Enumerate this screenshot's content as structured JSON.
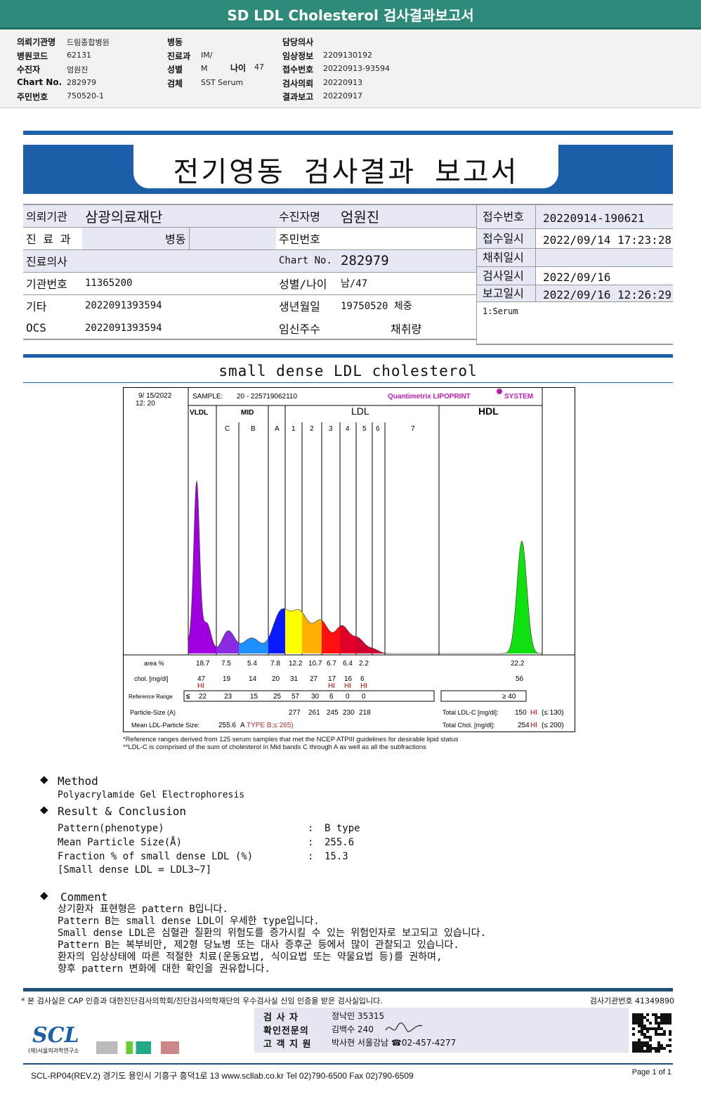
{
  "top": {
    "title": "SD LDL Cholesterol 검사결과보고서",
    "col1": [
      [
        "의뢰기관명",
        "드림종합병원"
      ],
      [
        "병원코드",
        "62131"
      ],
      [
        "수진자",
        "엄원진"
      ],
      [
        "Chart No.",
        "282979"
      ],
      [
        "주민번호",
        "750520-1"
      ]
    ],
    "col2": [
      [
        "병동",
        ""
      ],
      [
        "진료과",
        "IM/"
      ],
      [
        "성별",
        "M"
      ],
      [
        "검체",
        "SST Serum"
      ]
    ],
    "age_label": "나이",
    "age": "47",
    "col3": [
      [
        "담당의사",
        ""
      ],
      [
        "임상정보",
        "2209130192"
      ],
      [
        "접수번호",
        "20220913-93594"
      ],
      [
        "검사의뢰",
        "20220913"
      ],
      [
        "결과보고",
        "20220917"
      ]
    ]
  },
  "report_title": "전기영동 검사결과 보고서",
  "patient": {
    "org_label": "의뢰기관",
    "org": "삼광의료재단",
    "name_label": "수진자명",
    "name": "엄원진",
    "dept_label": "진 료 과",
    "ward": "병동",
    "rrn_label": "주민번호",
    "rrn": "",
    "doctor_label": "진료의사",
    "chart_label": "Chart No.",
    "chart": "282979",
    "inst_label": "기관번호",
    "inst": "11365200",
    "sexage_label": "성별/나이",
    "sexage": "남/47",
    "etc_label": "기타",
    "etc": "2022091393594",
    "birth_label": "생년월일",
    "birth": "19750520",
    "weight_label": "체중",
    "ocs_label": "OCS",
    "ocs": "2022091393594",
    "preg_label": "임신주수",
    "volume_label": "채취량",
    "right": [
      [
        "접수번호",
        "20220914-190621"
      ],
      [
        "접수일시",
        "2022/09/14 17:23:28"
      ],
      [
        "채취일시",
        ""
      ],
      [
        "검사일시",
        "2022/09/16"
      ],
      [
        "보고일시",
        "2022/09/16 12:26:29"
      ]
    ],
    "specimen": "1:Serum"
  },
  "section_title": "small dense LDL cholesterol",
  "chart": {
    "date": "9/ 15/2022",
    "time": "12: 20",
    "sample_label": "SAMPLE:",
    "sample": "20 - 225719062110",
    "brand": "Quantimetrix LIPOPRINT",
    "brand2": "SYSTEM",
    "groups": [
      "VLDL",
      "MID",
      "LDL",
      "HDL"
    ],
    "bands": [
      "C",
      "B",
      "A",
      "1",
      "2",
      "3",
      "4",
      "5",
      "6",
      "7"
    ],
    "colors": {
      "vldl": "#a000e0",
      "c": "#8a2be2",
      "b": "#1e8fff",
      "a": "#0a1aff",
      "l1": "#ffff00",
      "l2": "#ffb000",
      "l3": "#ff1010",
      "l4": "#e0002a",
      "l5": "#d00030",
      "hdl": "#10e010"
    },
    "area_label": "area %",
    "area": [
      "18.7",
      "7.5",
      "5.4",
      "7.8",
      "12.2",
      "10.7",
      "6.7",
      "6.4",
      "2.2"
    ],
    "area_hdl": "22.2",
    "chol_label": "chol. [mg/dl]",
    "chol": [
      "47",
      "19",
      "14",
      "20",
      "31",
      "27",
      "17",
      "16",
      "6"
    ],
    "chol_hdl": "56",
    "hi": [
      "HI",
      "",
      "",
      "",
      "",
      "",
      "HI",
      "HI",
      "HI"
    ],
    "ref_label": "Reference Range",
    "ref_le": "≤",
    "ref": [
      "22",
      "23",
      "15",
      "25",
      "57",
      "30",
      "6",
      "0",
      "0"
    ],
    "ref_hdl": "≥  40",
    "ps_label": "Particle-Size (A)",
    "ps": [
      "277",
      "261",
      "245",
      "230",
      "218"
    ],
    "mean_label": "Mean LDL-Particle Size:",
    "mean": "255.6",
    "mean_type": "A",
    "mean_ref": "TYPE B;≤ 265)",
    "tldl_label": "Total LDL-C  [mg/dl]:",
    "tldl": "150",
    "tldl_hi": "HI",
    "tldl_ref": "(≤ 130)",
    "tchol_label": "Total Chol.  [mg/dl]:",
    "tchol": "254",
    "tchol_hi": "HI",
    "tchol_ref": "(≤ 200)",
    "note1": "*Reference ranges derived from 125 serum samples that met the NCEP ATPIII guidelines for desirable lipid status",
    "note2": "**LDL-C is comprised of the sum of cholesterol in Mid bands C through A as well as all the subfractions"
  },
  "method": {
    "title": "Method",
    "text": "Polyacrylamide Gel Electrophoresis"
  },
  "result": {
    "title": "Result & Conclusion",
    "rows": [
      [
        "Pattern(phenotype)",
        "B type"
      ],
      [
        "Mean Particle Size(Å)",
        "255.6"
      ],
      [
        "Fraction % of small dense LDL (%)",
        "15.3"
      ]
    ],
    "note": "[Small dense LDL = LDL3~7]"
  },
  "comment": {
    "title": "Comment",
    "lines": [
      "상기환자 표현형은 pattern B입니다.",
      "Pattern B는 small dense LDL이 우세한 type입니다.",
      "Small dense LDL은 심혈관 질환의 위험도를 증가시킬 수 있는 위험인자로 보고되고 있습니다.",
      "Pattern B는 복부비만, 제2형 당뇨병 또는 대사 증후군 등에서 많이 관찰되고 있습니다.",
      "환자의 임상상태에 따른 적절한 치료(운동요법, 식이요법 또는 약물요법 등)를 권하며,",
      "향후 pattern 변화에 대한 확인을 권유합니다."
    ]
  },
  "footer": {
    "cert": "* 본 검사실은 CAP 인증과 대한진단검사의학회/진단검사의학재단의 우수검사실 신임 인증을 받은 검사실입니다.",
    "inst_no": "검사기관번호 41349890",
    "logo": "SCL",
    "logo_sub": "(재)서울의과학연구소",
    "staff": [
      [
        "검  사  자",
        "정낙민 35315"
      ],
      [
        "확인전문의",
        "김백수 240"
      ],
      [
        "고 객 지 원",
        "박사현 서울강남 ☎02-457-4277"
      ]
    ],
    "address": "SCL-RP04(REV.2)  경기도 용인시 기흥구 흥덕1로 13  www.scllab.co.kr   Tel 02)790-6500   Fax 02)790-6509",
    "page": "Page 1 of 1"
  }
}
